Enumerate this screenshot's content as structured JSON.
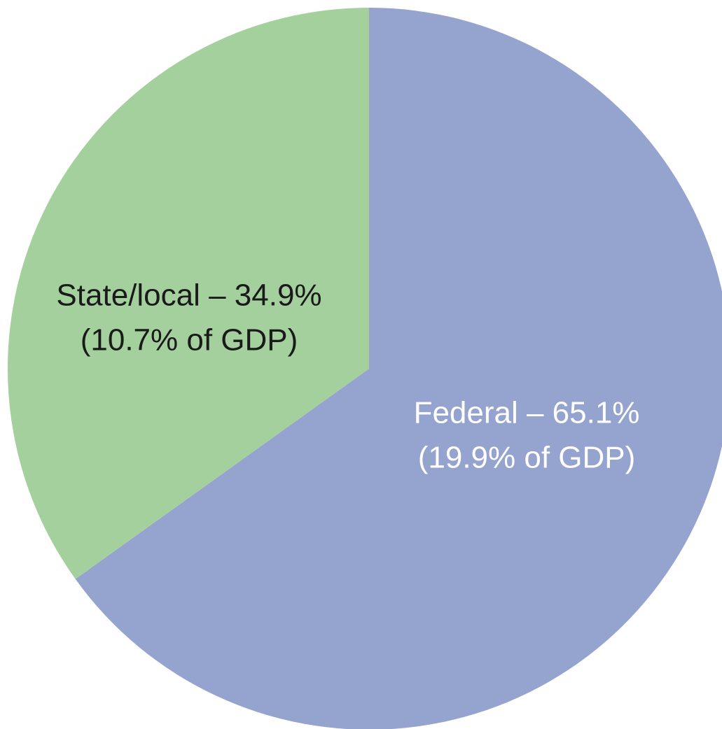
{
  "chart_data": {
    "type": "pie",
    "values": [
      65.1,
      34.9
    ],
    "value_labels": [
      "Federal – 65.1%",
      "State/local – 34.9%"
    ],
    "sublabels": [
      "(19.9% of GDP)",
      "(10.7% of GDP)"
    ],
    "colors": [
      "#95a3cf",
      "#a3d09c"
    ],
    "label_colors": [
      "#ffffff",
      "#1a1a1a"
    ]
  }
}
